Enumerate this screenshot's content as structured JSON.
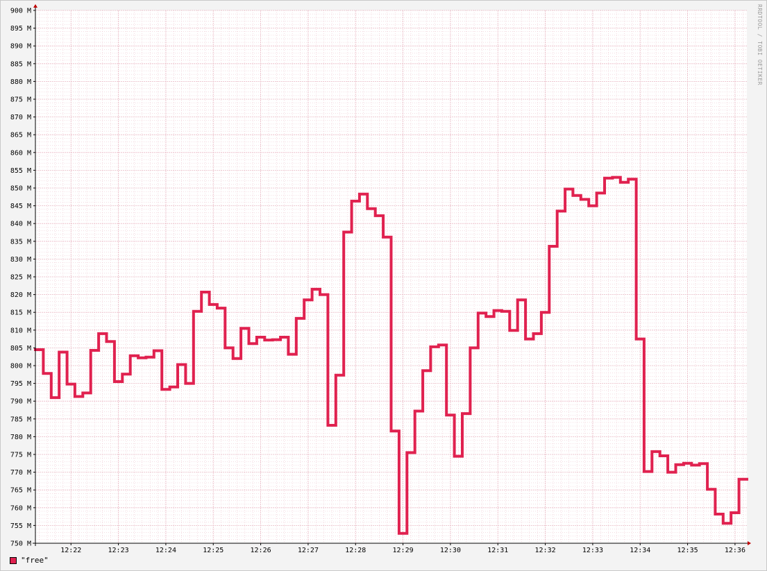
{
  "watermark": "RRDTOOL / TOBI OETIKER",
  "colors": {
    "line": "#e0214f",
    "plot_bg": "#ffffff",
    "page_bg": "#f3f3f3",
    "grid_minor": "#e9b8c4",
    "grid_major": "#d9d9d9",
    "axis": "#000000",
    "arrow": "#c00000"
  },
  "chart_data": {
    "type": "line",
    "step": true,
    "grid": true,
    "legend_position": "bottom-left",
    "ylim": [
      750,
      900
    ],
    "y_ticks": [
      750,
      755,
      760,
      765,
      770,
      775,
      780,
      785,
      790,
      795,
      800,
      805,
      810,
      815,
      820,
      825,
      830,
      835,
      840,
      845,
      850,
      855,
      860,
      865,
      870,
      875,
      880,
      885,
      890,
      895,
      900
    ],
    "y_tick_labels": [
      "750 M",
      "755 M",
      "760 M",
      "765 M",
      "770 M",
      "775 M",
      "780 M",
      "785 M",
      "790 M",
      "795 M",
      "800 M",
      "805 M",
      "810 M",
      "815 M",
      "820 M",
      "825 M",
      "830 M",
      "835 M",
      "840 M",
      "845 M",
      "850 M",
      "855 M",
      "860 M",
      "865 M",
      "870 M",
      "875 M",
      "880 M",
      "885 M",
      "890 M",
      "895 M",
      "900 M"
    ],
    "xlim": [
      "12:21:15",
      "12:36:15"
    ],
    "x_ticks": [
      "12:22:00",
      "12:23:00",
      "12:24:00",
      "12:25:00",
      "12:26:00",
      "12:27:00",
      "12:28:00",
      "12:29:00",
      "12:30:00",
      "12:31:00",
      "12:32:00",
      "12:33:00",
      "12:34:00",
      "12:35:00",
      "12:36:00"
    ],
    "x_tick_labels": [
      "12:22",
      "12:23",
      "12:24",
      "12:25",
      "12:26",
      "12:27",
      "12:28",
      "12:29",
      "12:30",
      "12:31",
      "12:32",
      "12:33",
      "12:34",
      "12:35",
      "12:36"
    ],
    "series": [
      {
        "name": "\"free\"",
        "color": "#e0214f",
        "x": [
          "12:21:15",
          "12:21:25",
          "12:21:35",
          "12:21:45",
          "12:21:55",
          "12:22:05",
          "12:22:15",
          "12:22:25",
          "12:22:35",
          "12:22:45",
          "12:22:55",
          "12:23:05",
          "12:23:15",
          "12:23:25",
          "12:23:35",
          "12:23:45",
          "12:23:55",
          "12:24:05",
          "12:24:15",
          "12:24:25",
          "12:24:35",
          "12:24:45",
          "12:24:55",
          "12:25:05",
          "12:25:15",
          "12:25:25",
          "12:25:35",
          "12:25:45",
          "12:25:55",
          "12:26:05",
          "12:26:15",
          "12:26:25",
          "12:26:35",
          "12:26:45",
          "12:26:55",
          "12:27:05",
          "12:27:15",
          "12:27:25",
          "12:27:35",
          "12:27:45",
          "12:27:55",
          "12:28:05",
          "12:28:15",
          "12:28:25",
          "12:28:35",
          "12:28:45",
          "12:28:55",
          "12:29:05",
          "12:29:15",
          "12:29:25",
          "12:29:35",
          "12:29:45",
          "12:29:55",
          "12:30:05",
          "12:30:15",
          "12:30:25",
          "12:30:35",
          "12:30:45",
          "12:30:55",
          "12:31:05",
          "12:31:15",
          "12:31:25",
          "12:31:35",
          "12:31:45",
          "12:31:55",
          "12:32:05",
          "12:32:15",
          "12:32:25",
          "12:32:35",
          "12:32:45",
          "12:32:55",
          "12:33:05",
          "12:33:15",
          "12:33:25",
          "12:33:35",
          "12:33:45",
          "12:33:55",
          "12:34:05",
          "12:34:15",
          "12:34:25",
          "12:34:35",
          "12:34:45",
          "12:34:55",
          "12:35:05",
          "12:35:15",
          "12:35:25",
          "12:35:35",
          "12:35:45",
          "12:35:55",
          "12:36:05"
        ],
        "values": [
          804.5,
          797.8,
          791.0,
          803.8,
          794.8,
          791.3,
          792.3,
          804.3,
          809.0,
          806.8,
          795.5,
          797.6,
          802.8,
          802.2,
          802.4,
          804.2,
          793.3,
          794.0,
          800.3,
          795.0,
          815.3,
          820.7,
          817.2,
          816.2,
          805.0,
          802.0,
          810.5,
          806.2,
          808.0,
          807.2,
          807.3,
          808.0,
          803.2,
          813.3,
          818.5,
          821.5,
          820.0,
          783.2,
          797.3,
          837.6,
          846.3,
          848.3,
          844.2,
          842.2,
          836.2,
          781.6,
          752.8,
          775.5,
          787.2,
          798.6,
          805.3,
          805.8,
          786.1,
          774.5,
          786.5,
          805.0,
          814.8,
          813.8,
          815.5,
          815.3,
          809.9,
          818.5,
          807.5,
          809.0,
          815.0,
          833.6,
          843.5,
          849.7,
          847.9,
          846.8,
          845.0,
          848.6,
          852.8,
          853.0,
          851.6,
          852.5,
          807.5,
          770.2,
          775.8,
          774.6,
          770.0,
          772.1,
          772.5,
          772.0,
          772.4,
          765.2,
          758.2,
          755.6,
          758.6,
          768.0
        ]
      }
    ]
  }
}
